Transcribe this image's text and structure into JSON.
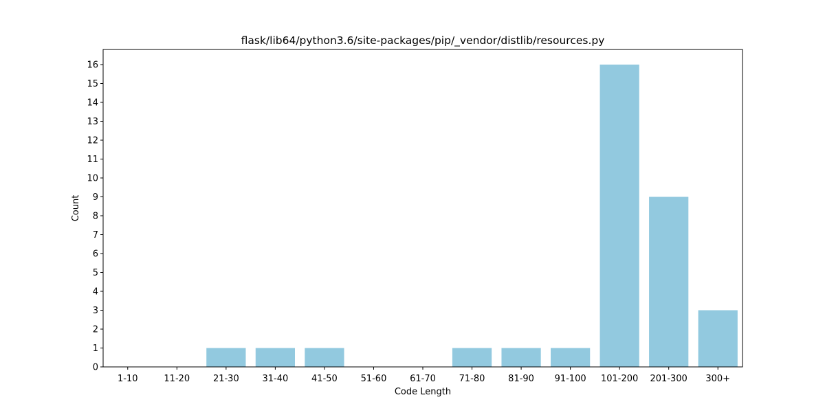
{
  "chart_data": {
    "type": "bar",
    "title": "flask/lib64/python3.6/site-packages/pip/_vendor/distlib/resources.py",
    "xlabel": "Code Length",
    "ylabel": "Count",
    "categories": [
      "1-10",
      "11-20",
      "21-30",
      "31-40",
      "41-50",
      "51-60",
      "61-70",
      "71-80",
      "81-90",
      "91-100",
      "101-200",
      "201-300",
      "300+"
    ],
    "values": [
      0,
      0,
      1,
      1,
      1,
      0,
      0,
      1,
      1,
      1,
      16,
      9,
      3
    ],
    "ylim": [
      0,
      16.8
    ],
    "yticks": [
      0,
      1,
      2,
      3,
      4,
      5,
      6,
      7,
      8,
      9,
      10,
      11,
      12,
      13,
      14,
      15,
      16
    ],
    "bar_color": "#92c9df",
    "grid": false,
    "legend": "none"
  }
}
